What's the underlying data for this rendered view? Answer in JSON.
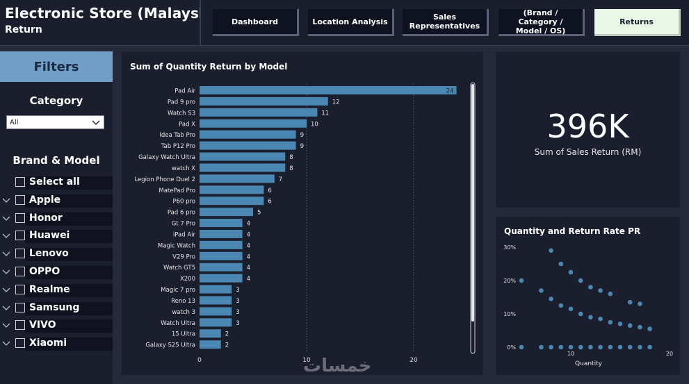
{
  "header": {
    "title": "Electronic Store (Malaysia)",
    "subtitle": "Return"
  },
  "nav": {
    "tabs": [
      {
        "label": "Dashboard"
      },
      {
        "label": "Location Analysis"
      },
      {
        "label": "Sales Representatives"
      },
      {
        "label": "(Brand / Category / Model / OS)"
      },
      {
        "label": "Returns"
      }
    ],
    "active_index": 4
  },
  "filters": {
    "heading": "Filters",
    "category": {
      "label": "Category",
      "value": "All"
    },
    "brand_model": {
      "label": "Brand & Model",
      "items": [
        {
          "label": "Select all",
          "expandable": false
        },
        {
          "label": "Apple",
          "expandable": true
        },
        {
          "label": "Honor",
          "expandable": true
        },
        {
          "label": "Huawei",
          "expandable": true
        },
        {
          "label": "Lenovo",
          "expandable": true
        },
        {
          "label": "OPPO",
          "expandable": true
        },
        {
          "label": "Realme",
          "expandable": true
        },
        {
          "label": "Samsung",
          "expandable": true
        },
        {
          "label": "VIVO",
          "expandable": true
        },
        {
          "label": "Xiaomi",
          "expandable": true
        }
      ]
    }
  },
  "kpi": {
    "value": "396K",
    "label": "Sum of Sales Return (RM)"
  },
  "watermark": "خمسات",
  "chart_data": [
    {
      "type": "bar",
      "orientation": "horizontal",
      "title": "Sum of Quantity Return by Model",
      "color": "#4a87b2",
      "categories": [
        "Pad Air",
        "Pad 9 pro",
        "Watch S3",
        "Pad X",
        "Idea Tab Pro",
        "Tab P12 Pro",
        "Galaxy Watch Ultra",
        "watch X",
        "Legion Phone Duel 2",
        "MatePad Pro",
        "P60 pro",
        "Pad 6 pro",
        "Gt 7 Pro",
        "iPad Air",
        "Magic Watch",
        "V29 Pro",
        "Watch GT5",
        "X200",
        "Magic 7 pro",
        "Reno 13",
        "watch 3",
        "Watch Ultra",
        "15 Ultra",
        "Galaxy S25 Ultra"
      ],
      "values": [
        24,
        12,
        11,
        10,
        9,
        9,
        8,
        8,
        7,
        6,
        6,
        5,
        4,
        4,
        4,
        4,
        4,
        4,
        3,
        3,
        3,
        3,
        2,
        2
      ],
      "xticks": [
        "0",
        "10",
        "20"
      ],
      "xlim": [
        0,
        25
      ],
      "grid": true
    },
    {
      "type": "scatter",
      "title": "Quantity and Return Rate PR",
      "xlabel": "Quantity",
      "color": "#4a87b2",
      "xticks": [
        "10",
        "20"
      ],
      "yticks": [
        "30%",
        "20%",
        "10%",
        "0%"
      ],
      "xlim": [
        5,
        20
      ],
      "ylim": [
        0,
        30
      ],
      "points": [
        {
          "x": 5,
          "y": 20
        },
        {
          "x": 7,
          "y": 17
        },
        {
          "x": 8,
          "y": 29
        },
        {
          "x": 8,
          "y": 14.5
        },
        {
          "x": 9,
          "y": 25
        },
        {
          "x": 9,
          "y": 12.5
        },
        {
          "x": 10,
          "y": 22.5
        },
        {
          "x": 10,
          "y": 11.5
        },
        {
          "x": 11,
          "y": 20
        },
        {
          "x": 11,
          "y": 10
        },
        {
          "x": 12,
          "y": 18
        },
        {
          "x": 12,
          "y": 9
        },
        {
          "x": 13,
          "y": 17
        },
        {
          "x": 13,
          "y": 8.5
        },
        {
          "x": 14,
          "y": 16
        },
        {
          "x": 14,
          "y": 7.5
        },
        {
          "x": 15,
          "y": 7
        },
        {
          "x": 16,
          "y": 13.5
        },
        {
          "x": 16,
          "y": 6.5
        },
        {
          "x": 17,
          "y": 13
        },
        {
          "x": 17,
          "y": 6
        },
        {
          "x": 18,
          "y": 5.5
        },
        {
          "x": 5,
          "y": 0
        },
        {
          "x": 7,
          "y": 0
        },
        {
          "x": 8,
          "y": 0
        },
        {
          "x": 9,
          "y": 0
        },
        {
          "x": 10,
          "y": 0
        },
        {
          "x": 11,
          "y": 0
        },
        {
          "x": 12,
          "y": 0
        },
        {
          "x": 13,
          "y": 0
        },
        {
          "x": 14,
          "y": 0
        },
        {
          "x": 15,
          "y": 0
        },
        {
          "x": 16,
          "y": 0
        },
        {
          "x": 17,
          "y": 0
        },
        {
          "x": 18,
          "y": 0
        }
      ]
    }
  ]
}
